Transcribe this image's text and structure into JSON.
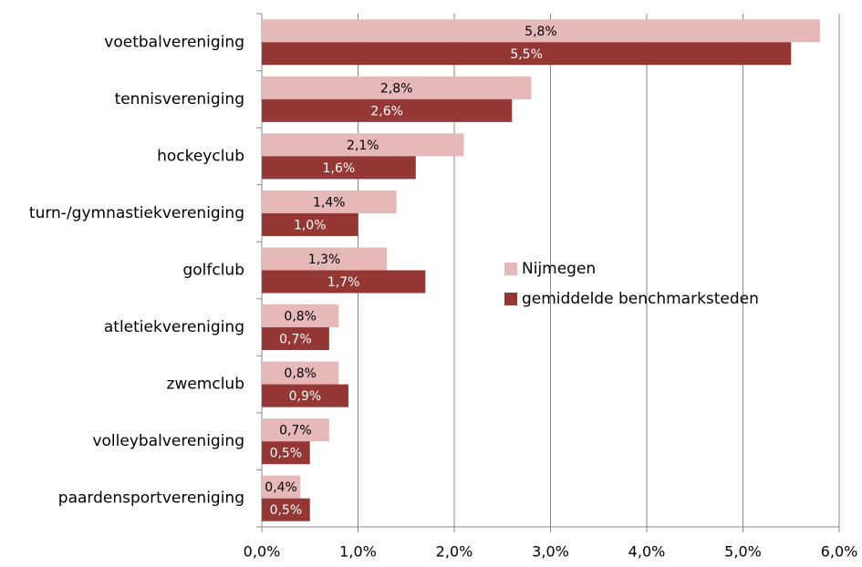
{
  "chart_data": {
    "type": "hbar",
    "categories": [
      "voetbalvereniging",
      "tennisvereniging",
      "hockeyclub",
      "turn-/gymnastiekvereniging",
      "golfclub",
      "atletiekvereniging",
      "zwemclub",
      "volleybalvereniging",
      "paardensportvereniging"
    ],
    "series": [
      {
        "name": "Nijmegen",
        "color": "#e6b8b7",
        "values": [
          5.8,
          2.8,
          2.1,
          1.4,
          1.3,
          0.8,
          0.8,
          0.7,
          0.4
        ],
        "value_labels": [
          "5,8%",
          "2,8%",
          "2,1%",
          "1,4%",
          "1,3%",
          "0,8%",
          "0,8%",
          "0,7%",
          "0,4%"
        ]
      },
      {
        "name": "gemiddelde benchmarksteden",
        "color": "#953735",
        "values": [
          5.5,
          2.6,
          1.6,
          1.0,
          1.7,
          0.7,
          0.9,
          0.5,
          0.5
        ],
        "value_labels": [
          "5,5%",
          "2,6%",
          "1,6%",
          "1,0%",
          "1,7%",
          "0,7%",
          "0,9%",
          "0,5%",
          "0,5%"
        ]
      }
    ],
    "xlim": [
      0,
      6
    ],
    "xticks": [
      {
        "value": 0,
        "label": "0,0%"
      },
      {
        "value": 1,
        "label": "1,0%"
      },
      {
        "value": 2,
        "label": "2,0%"
      },
      {
        "value": 3,
        "label": "3,0%"
      },
      {
        "value": 4,
        "label": "4,0%"
      },
      {
        "value": 5,
        "label": "5,0%"
      },
      {
        "value": 6,
        "label": "6,0%"
      }
    ],
    "grid": true
  }
}
